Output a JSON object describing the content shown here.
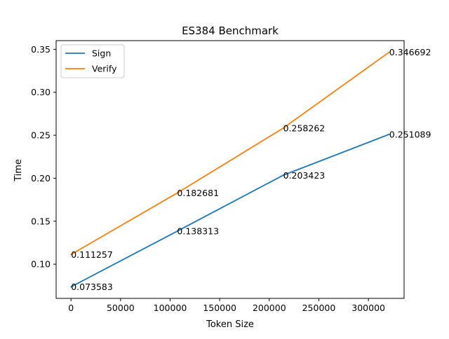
{
  "chart_data": {
    "type": "line",
    "title": "ES384 Benchmark",
    "xlabel": "Token Size",
    "ylabel": "Time",
    "xlim": [
      -15000,
      336000
    ],
    "ylim": [
      0.0602,
      0.3601
    ],
    "x_ticks": [
      0,
      50000,
      100000,
      150000,
      200000,
      250000,
      300000
    ],
    "y_ticks": [
      0.1,
      0.15,
      0.2,
      0.25,
      0.3,
      0.35
    ],
    "x_tick_labels": [
      "0",
      "50000",
      "100000",
      "150000",
      "200000",
      "250000",
      "300000"
    ],
    "y_tick_labels": [
      "0.10",
      "0.15",
      "0.20",
      "0.25",
      "0.30",
      "0.35"
    ],
    "x": [
      0,
      107000,
      214000,
      321000
    ],
    "series": [
      {
        "name": "Sign",
        "color": "#1f77b4",
        "values": [
          0.073583,
          0.138313,
          0.203423,
          0.251089
        ],
        "labels": [
          "0.073583",
          "0.138313",
          "0.203423",
          "0.251089"
        ]
      },
      {
        "name": "Verify",
        "color": "#ff7f0e",
        "values": [
          0.111257,
          0.182681,
          0.258262,
          0.346692
        ],
        "labels": [
          "0.111257",
          "0.182681",
          "0.258262",
          "0.346692"
        ]
      }
    ],
    "legend": "top-left",
    "grid": false
  }
}
